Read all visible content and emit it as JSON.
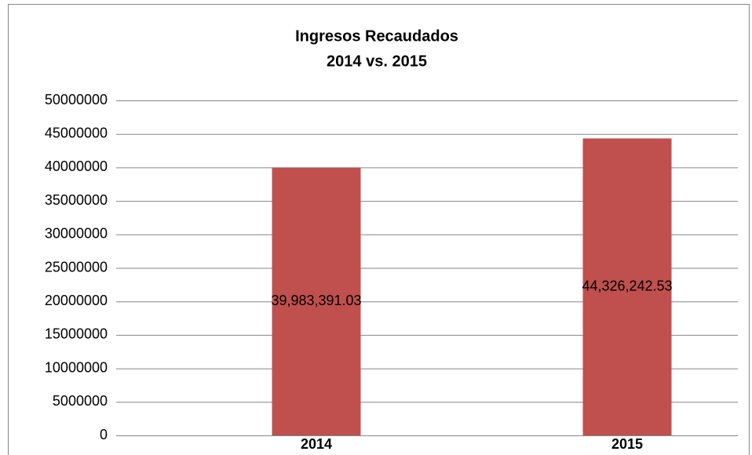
{
  "chart_data": {
    "type": "bar",
    "title": "Ingresos Recaudados",
    "subtitle": "2014 vs. 2015",
    "categories": [
      "2014",
      "2015"
    ],
    "values": [
      39983391.03,
      44326242.53
    ],
    "value_labels": [
      "39,983,391.03",
      "44,326,242.53"
    ],
    "color": "#c0504d",
    "ylim": [
      0,
      50000000
    ],
    "yticks": [
      0,
      5000000,
      10000000,
      15000000,
      20000000,
      25000000,
      30000000,
      35000000,
      40000000,
      45000000,
      50000000
    ],
    "grid": true
  }
}
